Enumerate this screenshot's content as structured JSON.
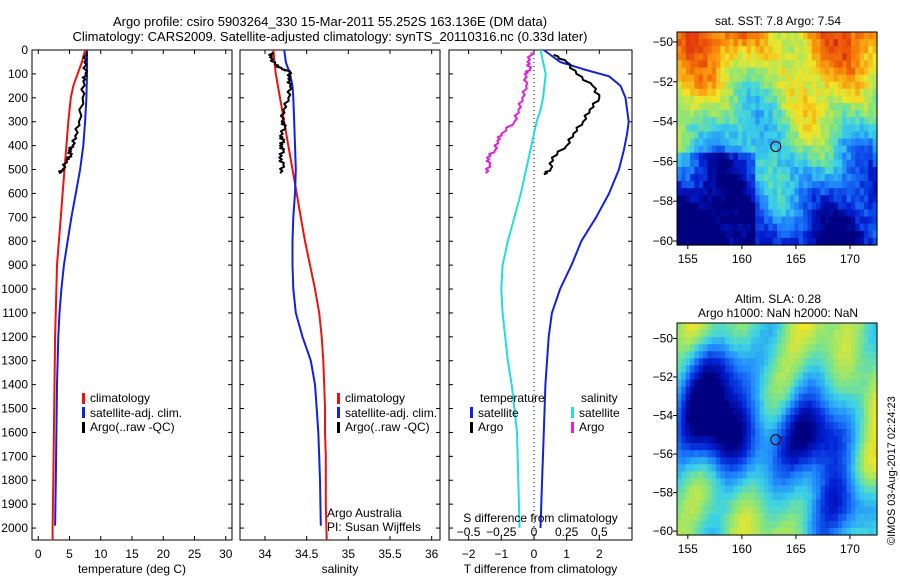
{
  "header": {
    "line1": "Argo profile: csiro 5903264_330 15-Mar-2011 55.252S 163.136E (DM data)",
    "line2": "Climatology: CARS2009. Satellite-adjusted climatology: synTS_20110316.nc (0.33d later)"
  },
  "colors": {
    "climatology": "#ee1111",
    "satellite": "#1122dd",
    "argo": "#000000",
    "sat_salinity": "#22dddd",
    "argo_salinity": "#dd22dd"
  },
  "legend_profiles": [
    "climatology",
    "satellite-adj. clim.",
    "Argo(..raw -QC)"
  ],
  "legend_diff": {
    "temperature": "temperature",
    "salinity": "salinity",
    "satellite": "satellite",
    "argo": "Argo"
  },
  "credit": {
    "line1": "Argo Australia",
    "line2": "PI: Susan Wijffels"
  },
  "map_sst": {
    "title": "sat. SST: 7.8 Argo: 7.54",
    "icon": "circle-marker-icon"
  },
  "map_sla": {
    "title1": "Altim. SLA: 0.28",
    "title2": "Argo h1000: NaN h2000: NaN",
    "icon": "circle-marker-icon"
  },
  "watermark": "©IMOS 03-Aug-2017 02:24:23",
  "chart_data": [
    {
      "type": "line",
      "xlabel": "temperature (deg C)",
      "xlim": [
        -1,
        31
      ],
      "ylim": [
        2050,
        0
      ],
      "xticks": [
        0,
        5,
        10,
        15,
        20,
        25,
        30
      ],
      "yticks": [
        0,
        100,
        200,
        300,
        400,
        500,
        600,
        700,
        800,
        900,
        1000,
        1100,
        1200,
        1300,
        1400,
        1500,
        1600,
        1700,
        1800,
        1900,
        2000
      ],
      "series": [
        {
          "name": "climatology",
          "color": "#ee1111",
          "points": [
            [
              7.5,
              0
            ],
            [
              7.0,
              50
            ],
            [
              6.3,
              100
            ],
            [
              5.6,
              150
            ],
            [
              5.2,
              200
            ],
            [
              4.8,
              300
            ],
            [
              4.5,
              400
            ],
            [
              4.2,
              500
            ],
            [
              3.9,
              600
            ],
            [
              3.6,
              700
            ],
            [
              3.3,
              800
            ],
            [
              3.0,
              900
            ],
            [
              2.9,
              1000
            ],
            [
              2.7,
              1200
            ],
            [
              2.6,
              1400
            ],
            [
              2.5,
              1600
            ],
            [
              2.4,
              1800
            ],
            [
              2.3,
              2000
            ],
            [
              2.3,
              2050
            ]
          ]
        },
        {
          "name": "satellite-adj. clim.",
          "color": "#1122dd",
          "points": [
            [
              7.8,
              0
            ],
            [
              7.8,
              50
            ],
            [
              7.8,
              100
            ],
            [
              7.7,
              200
            ],
            [
              7.5,
              300
            ],
            [
              7.2,
              400
            ],
            [
              6.7,
              500
            ],
            [
              6.0,
              600
            ],
            [
              5.3,
              700
            ],
            [
              4.7,
              800
            ],
            [
              4.1,
              900
            ],
            [
              3.7,
              1000
            ],
            [
              3.4,
              1100
            ],
            [
              3.2,
              1200
            ],
            [
              3.0,
              1400
            ],
            [
              2.9,
              1600
            ],
            [
              2.8,
              1800
            ],
            [
              2.7,
              1990
            ]
          ]
        },
        {
          "name": "Argo(..raw -QC)",
          "color": "#000000",
          "points": [
            [
              7.6,
              10
            ],
            [
              7.4,
              50
            ],
            [
              7.55,
              100
            ],
            [
              7.2,
              130
            ],
            [
              7.1,
              200
            ],
            [
              6.5,
              300
            ],
            [
              5.9,
              360
            ],
            [
              5.5,
              400
            ],
            [
              4.9,
              420
            ],
            [
              5.2,
              440
            ],
            [
              4.5,
              460
            ],
            [
              3.9,
              500
            ],
            [
              3.3,
              515
            ]
          ]
        }
      ]
    },
    {
      "type": "line",
      "xlabel": "salinity",
      "xlim": [
        33.7,
        36.1
      ],
      "ylim": [
        2050,
        0
      ],
      "xticks": [
        34,
        34.5,
        35,
        35.5,
        36
      ],
      "yticks": [
        0,
        100,
        200,
        300,
        400,
        500,
        600,
        700,
        800,
        900,
        1000,
        1100,
        1200,
        1300,
        1400,
        1500,
        1600,
        1700,
        1800,
        1900,
        2000
      ],
      "series": [
        {
          "name": "climatology",
          "color": "#ee1111",
          "points": [
            [
              34.1,
              0
            ],
            [
              34.13,
              100
            ],
            [
              34.18,
              200
            ],
            [
              34.23,
              300
            ],
            [
              34.28,
              400
            ],
            [
              34.33,
              500
            ],
            [
              34.38,
              600
            ],
            [
              34.43,
              700
            ],
            [
              34.48,
              800
            ],
            [
              34.54,
              900
            ],
            [
              34.6,
              1000
            ],
            [
              34.65,
              1100
            ],
            [
              34.68,
              1200
            ],
            [
              34.7,
              1300
            ],
            [
              34.71,
              1400
            ],
            [
              34.72,
              1500
            ],
            [
              34.72,
              1600
            ],
            [
              34.73,
              1700
            ],
            [
              34.73,
              1800
            ],
            [
              34.73,
              1900
            ],
            [
              34.74,
              2050
            ]
          ]
        },
        {
          "name": "satellite-adj. clim.",
          "color": "#1122dd",
          "points": [
            [
              34.23,
              0
            ],
            [
              34.25,
              50
            ],
            [
              34.3,
              100
            ],
            [
              34.33,
              150
            ],
            [
              34.34,
              200
            ],
            [
              34.35,
              300
            ],
            [
              34.36,
              400
            ],
            [
              34.37,
              500
            ],
            [
              34.36,
              600
            ],
            [
              34.34,
              700
            ],
            [
              34.33,
              800
            ],
            [
              34.33,
              900
            ],
            [
              34.34,
              1000
            ],
            [
              34.37,
              1100
            ],
            [
              34.45,
              1200
            ],
            [
              34.55,
              1300
            ],
            [
              34.6,
              1400
            ],
            [
              34.62,
              1500
            ],
            [
              34.64,
              1600
            ],
            [
              34.65,
              1700
            ],
            [
              34.66,
              1800
            ],
            [
              34.67,
              1990
            ]
          ]
        },
        {
          "name": "Argo(..raw -QC)",
          "color": "#000000",
          "points": [
            [
              34.08,
              10
            ],
            [
              34.06,
              30
            ],
            [
              34.12,
              60
            ],
            [
              34.2,
              80
            ],
            [
              34.3,
              90
            ],
            [
              34.28,
              120
            ],
            [
              34.3,
              150
            ],
            [
              34.28,
              200
            ],
            [
              34.22,
              250
            ],
            [
              34.2,
              300
            ],
            [
              34.24,
              320
            ],
            [
              34.18,
              360
            ],
            [
              34.22,
              380
            ],
            [
              34.18,
              400
            ],
            [
              34.22,
              420
            ],
            [
              34.17,
              450
            ],
            [
              34.22,
              480
            ],
            [
              34.18,
              515
            ]
          ]
        }
      ]
    },
    {
      "type": "line",
      "xlabel": "T difference from climatology",
      "xlabel_top": "S difference from climatology",
      "xlim": [
        -2.6,
        3.0
      ],
      "ylim": [
        2050,
        0
      ],
      "xticks": [
        -2,
        -1,
        0,
        1,
        2
      ],
      "xticks_top": [
        -0.5,
        -0.25,
        0,
        0.25,
        0.5
      ],
      "xticks_top_labels": [
        "-0.5",
        "-0.25",
        "0",
        "0.25",
        "0.5"
      ],
      "s_scale": 4,
      "series": [
        {
          "name": "satellite",
          "quantity": "temperature",
          "color": "#1122dd",
          "points": [
            [
              0.3,
              0
            ],
            [
              0.8,
              50
            ],
            [
              1.5,
              80
            ],
            [
              2.3,
              110
            ],
            [
              2.65,
              150
            ],
            [
              2.8,
              200
            ],
            [
              2.85,
              250
            ],
            [
              2.9,
              300
            ],
            [
              2.85,
              350
            ],
            [
              2.75,
              420
            ],
            [
              2.6,
              500
            ],
            [
              2.3,
              600
            ],
            [
              1.9,
              700
            ],
            [
              1.45,
              800
            ],
            [
              1.15,
              900
            ],
            [
              0.8,
              1000
            ],
            [
              0.55,
              1100
            ],
            [
              0.45,
              1200
            ],
            [
              0.35,
              1400
            ],
            [
              0.3,
              1600
            ],
            [
              0.25,
              1800
            ],
            [
              0.2,
              2000
            ]
          ]
        },
        {
          "name": "Argo",
          "quantity": "temperature",
          "color": "#000000",
          "points": [
            [
              0.6,
              20
            ],
            [
              1.0,
              50
            ],
            [
              1.3,
              100
            ],
            [
              1.8,
              150
            ],
            [
              2.0,
              200
            ],
            [
              1.7,
              250
            ],
            [
              1.5,
              300
            ],
            [
              1.2,
              350
            ],
            [
              1.0,
              400
            ],
            [
              0.55,
              450
            ],
            [
              0.5,
              500
            ],
            [
              0.3,
              520
            ]
          ]
        },
        {
          "name": "satellite",
          "quantity": "salinity",
          "color": "#22dddd",
          "points": [
            [
              0.05,
              0
            ],
            [
              0.07,
              50
            ],
            [
              0.09,
              100
            ],
            [
              0.07,
              200
            ],
            [
              0.05,
              250
            ],
            [
              0.02,
              300
            ],
            [
              -0.02,
              400
            ],
            [
              -0.06,
              500
            ],
            [
              -0.1,
              600
            ],
            [
              -0.15,
              700
            ],
            [
              -0.2,
              800
            ],
            [
              -0.24,
              900
            ],
            [
              -0.25,
              1000
            ],
            [
              -0.24,
              1100
            ],
            [
              -0.22,
              1200
            ],
            [
              -0.2,
              1300
            ],
            [
              -0.17,
              1400
            ],
            [
              -0.15,
              1500
            ],
            [
              -0.13,
              1600
            ],
            [
              -0.12,
              1800
            ],
            [
              -0.11,
              2000
            ]
          ]
        },
        {
          "name": "Argo",
          "quantity": "salinity",
          "color": "#dd22dd",
          "points": [
            [
              -0.02,
              10
            ],
            [
              -0.05,
              50
            ],
            [
              -0.03,
              80
            ],
            [
              -0.07,
              100
            ],
            [
              -0.06,
              150
            ],
            [
              -0.09,
              200
            ],
            [
              -0.12,
              250
            ],
            [
              -0.15,
              300
            ],
            [
              -0.25,
              350
            ],
            [
              -0.28,
              380
            ],
            [
              -0.3,
              420
            ],
            [
              -0.36,
              450
            ],
            [
              -0.34,
              480
            ],
            [
              -0.37,
              515
            ]
          ]
        }
      ]
    },
    {
      "type": "heatmap",
      "title": "sat. SST: 7.8 Argo: 7.54",
      "xlim": [
        154,
        172.5
      ],
      "ylim": [
        -60.2,
        -49.5
      ],
      "xticks": [
        155,
        160,
        165,
        170
      ],
      "yticks": [
        -50,
        -52,
        -54,
        -56,
        -58,
        -60
      ],
      "marker": [
        163.136,
        -55.252
      ]
    },
    {
      "type": "heatmap",
      "title": "Altim. SLA: 0.28",
      "xlim": [
        154,
        172.5
      ],
      "ylim": [
        -60.2,
        -49.2
      ],
      "xticks": [
        155,
        160,
        165,
        170
      ],
      "yticks": [
        -50,
        -52,
        -54,
        -56,
        -58,
        -60
      ],
      "marker": [
        163.136,
        -55.252
      ]
    }
  ]
}
